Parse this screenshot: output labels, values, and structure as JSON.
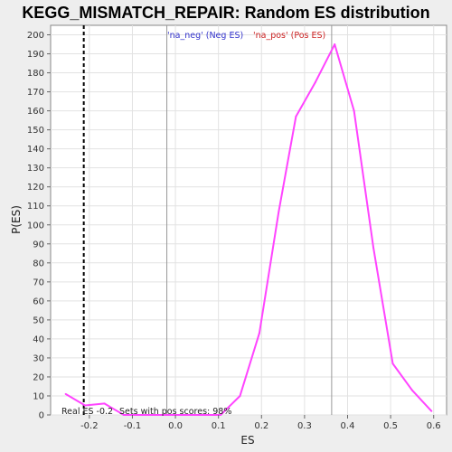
{
  "chart_data": {
    "type": "line",
    "title": "KEGG_MISMATCH_REPAIR: Random ES distribution",
    "xlabel": "ES",
    "ylabel": "P(ES)",
    "xlim": [
      -0.29,
      0.63
    ],
    "ylim": [
      0,
      205
    ],
    "x_ticks": [
      "-0.2",
      "-0.1",
      "0.0",
      "0.1",
      "0.2",
      "0.3",
      "0.4",
      "0.5",
      "0.6"
    ],
    "y_ticks": [
      "0",
      "10",
      "20",
      "30",
      "40",
      "50",
      "60",
      "70",
      "80",
      "90",
      "100",
      "110",
      "120",
      "130",
      "140",
      "150",
      "160",
      "170",
      "180",
      "190",
      "200"
    ],
    "grid": true,
    "series": [
      {
        "name": "'na_pos' (Pos ES)",
        "color": "#ff44ff",
        "x": [
          -0.255,
          -0.21,
          -0.165,
          -0.12,
          -0.075,
          -0.03,
          0.015,
          0.06,
          0.105,
          0.15,
          0.195,
          0.24,
          0.28,
          0.325,
          0.37,
          0.415,
          0.46,
          0.505,
          0.55,
          0.595
        ],
        "y": [
          11,
          5,
          6,
          0,
          0,
          0,
          0,
          0,
          0,
          10,
          43,
          107,
          157,
          175,
          195,
          160,
          88,
          27,
          13,
          2
        ]
      }
    ],
    "legend": [
      {
        "label": "'na_neg' (Neg ES)",
        "color": "#3333cc"
      },
      {
        "label": "'na_pos' (Pos ES)",
        "color": "#cc2222"
      }
    ],
    "vlines": [
      {
        "x": -0.213,
        "style": "dashed",
        "color": "#000000"
      },
      {
        "x": -0.02,
        "style": "solid",
        "color": "#999999"
      },
      {
        "x": 0.363,
        "style": "solid",
        "color": "#999999"
      }
    ],
    "annotations": {
      "real_es": "Real ES -0.2",
      "pos_scores": "Sets with pos scores: 98%"
    }
  }
}
